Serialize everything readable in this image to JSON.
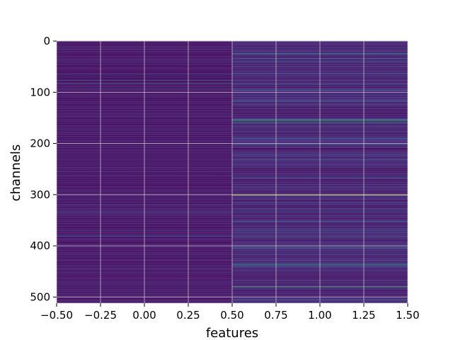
{
  "chart_data": {
    "type": "heatmap",
    "title": "",
    "xlabel": "features",
    "ylabel": "channels",
    "xlim": [
      -0.5,
      1.5
    ],
    "ylim": [
      512,
      0
    ],
    "x_ticks": [
      "−0.50",
      "−0.25",
      "0.00",
      "0.25",
      "0.50",
      "0.75",
      "1.00",
      "1.25",
      "1.50"
    ],
    "x_tick_values": [
      -0.5,
      -0.25,
      0.0,
      0.25,
      0.5,
      0.75,
      1.0,
      1.25,
      1.5
    ],
    "y_ticks": [
      "0",
      "100",
      "200",
      "300",
      "400",
      "500"
    ],
    "y_tick_values": [
      0,
      100,
      200,
      300,
      400,
      500
    ],
    "grid": true,
    "colormap": "viridis",
    "columns": 2,
    "rows": 512,
    "value_range": [
      0,
      1
    ],
    "base_level": [
      0.06,
      0.1
    ],
    "highlighted_rows": [
      {
        "row": 25,
        "values": [
          0.04,
          0.55
        ]
      },
      {
        "row": 34,
        "values": [
          0.06,
          0.35
        ]
      },
      {
        "row": 40,
        "values": [
          0.05,
          0.3
        ]
      },
      {
        "row": 64,
        "values": [
          0.2,
          0.25
        ]
      },
      {
        "row": 77,
        "values": [
          0.3,
          0.22
        ]
      },
      {
        "row": 83,
        "values": [
          0.42,
          0.3
        ]
      },
      {
        "row": 96,
        "values": [
          0.12,
          0.35
        ]
      },
      {
        "row": 117,
        "values": [
          0.05,
          0.3
        ]
      },
      {
        "row": 153,
        "values": [
          0.06,
          0.6
        ]
      },
      {
        "row": 156,
        "values": [
          0.06,
          0.65
        ]
      },
      {
        "row": 160,
        "values": [
          0.05,
          0.55
        ]
      },
      {
        "row": 190,
        "values": [
          0.05,
          0.3
        ]
      },
      {
        "row": 203,
        "values": [
          0.05,
          0.32
        ]
      },
      {
        "row": 232,
        "values": [
          0.06,
          0.4
        ]
      },
      {
        "row": 268,
        "values": [
          0.05,
          0.35
        ]
      },
      {
        "row": 301,
        "values": [
          0.07,
          0.88
        ]
      },
      {
        "row": 334,
        "values": [
          0.2,
          0.25
        ]
      },
      {
        "row": 352,
        "values": [
          0.1,
          0.3
        ]
      },
      {
        "row": 381,
        "values": [
          0.35,
          0.3
        ]
      },
      {
        "row": 404,
        "values": [
          0.06,
          0.45
        ]
      },
      {
        "row": 436,
        "values": [
          0.05,
          0.55
        ]
      },
      {
        "row": 440,
        "values": [
          0.05,
          0.45
        ]
      },
      {
        "row": 480,
        "values": [
          0.06,
          0.72
        ]
      },
      {
        "row": 505,
        "values": [
          0.05,
          0.3
        ]
      }
    ]
  }
}
